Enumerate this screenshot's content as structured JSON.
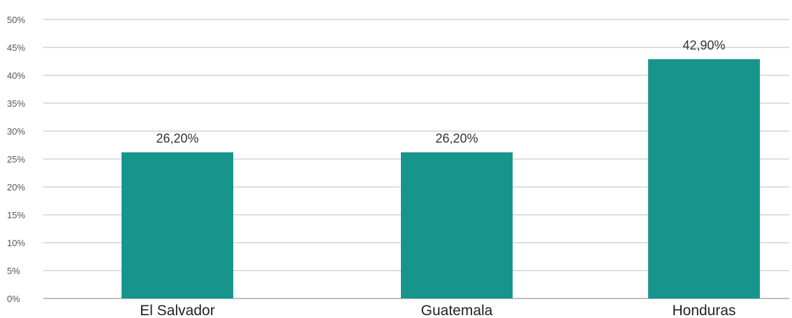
{
  "chart_data": {
    "type": "bar",
    "title": "",
    "xlabel": "",
    "ylabel": "",
    "categories": [
      "El Salvador",
      "Guatemala",
      "Honduras"
    ],
    "values": [
      26.2,
      26.2,
      42.9
    ],
    "data_labels": [
      "26,20%",
      "26,20%",
      "42,90%"
    ],
    "ylim": [
      0,
      50
    ],
    "y_ticks": [
      0,
      5,
      10,
      15,
      20,
      25,
      30,
      35,
      40,
      45,
      50
    ],
    "y_tick_labels": [
      "0%",
      "5%",
      "10%",
      "15%",
      "20%",
      "25%",
      "30%",
      "35%",
      "40%",
      "45%",
      "50%"
    ],
    "grid": true,
    "legend": "none",
    "bar_color": "#17958d"
  }
}
